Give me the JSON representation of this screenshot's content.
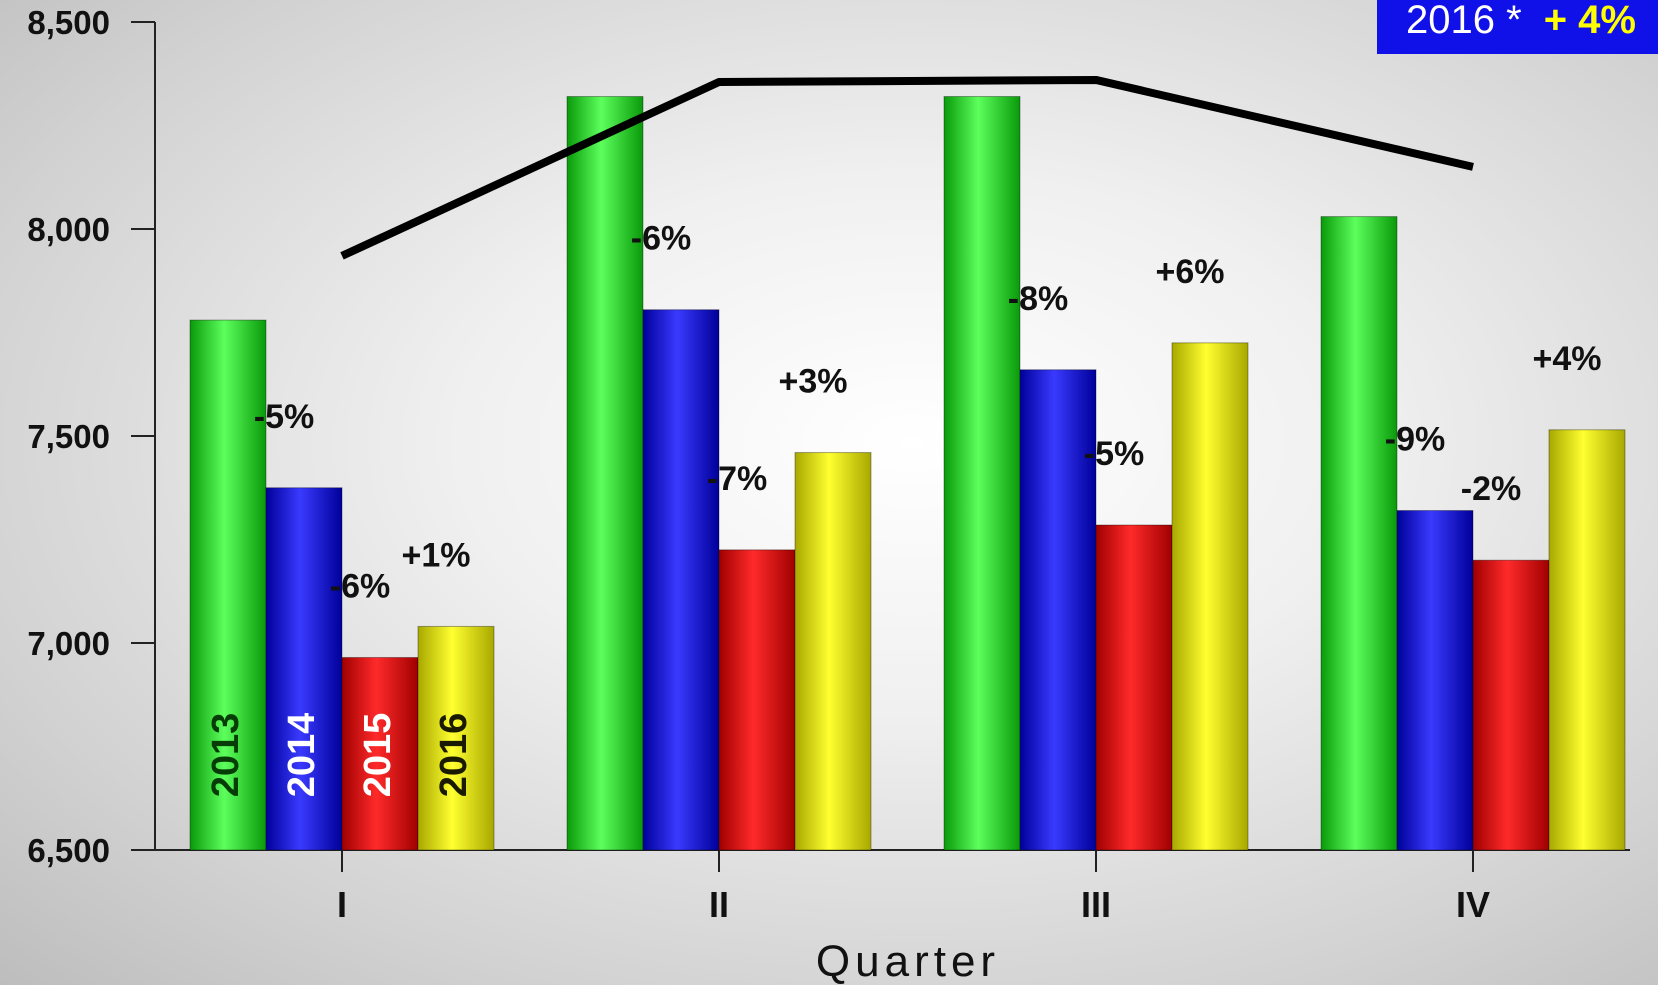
{
  "chart_data": {
    "type": "bar",
    "xlabel": "Quarter",
    "ylabel": "",
    "ylim": [
      6500,
      8500
    ],
    "yticks": [
      6500,
      7000,
      7500,
      8000,
      8500
    ],
    "ytick_labels": [
      "6,500",
      "7,000",
      "7,500",
      "8,000",
      "8,500"
    ],
    "categories": [
      "I",
      "II",
      "III",
      "IV"
    ],
    "series": [
      {
        "name": "2013",
        "color": "#22e022",
        "values": [
          7780,
          8320,
          8320,
          8030
        ],
        "labels": [
          "",
          "",
          "",
          ""
        ]
      },
      {
        "name": "2014",
        "color": "#1515e0",
        "values": [
          7375,
          7805,
          7660,
          7320
        ],
        "labels": [
          "-5%",
          "-6%",
          "-8%",
          "-9%"
        ]
      },
      {
        "name": "2015",
        "color": "#ee0a0a",
        "values": [
          6965,
          7225,
          7285,
          7200
        ],
        "labels": [
          "-6%",
          "-7%",
          "-5%",
          "-2%"
        ]
      },
      {
        "name": "2016",
        "color": "#e6e600",
        "values": [
          7040,
          7460,
          7725,
          7515
        ],
        "labels": [
          "+1%",
          "+3%",
          "+6%",
          "+4%"
        ]
      }
    ],
    "line_series": {
      "color": "#000000",
      "values": [
        7935,
        8355,
        8360,
        8150
      ]
    },
    "annotation": {
      "text": "2016 *",
      "value": "+ 4%"
    }
  }
}
